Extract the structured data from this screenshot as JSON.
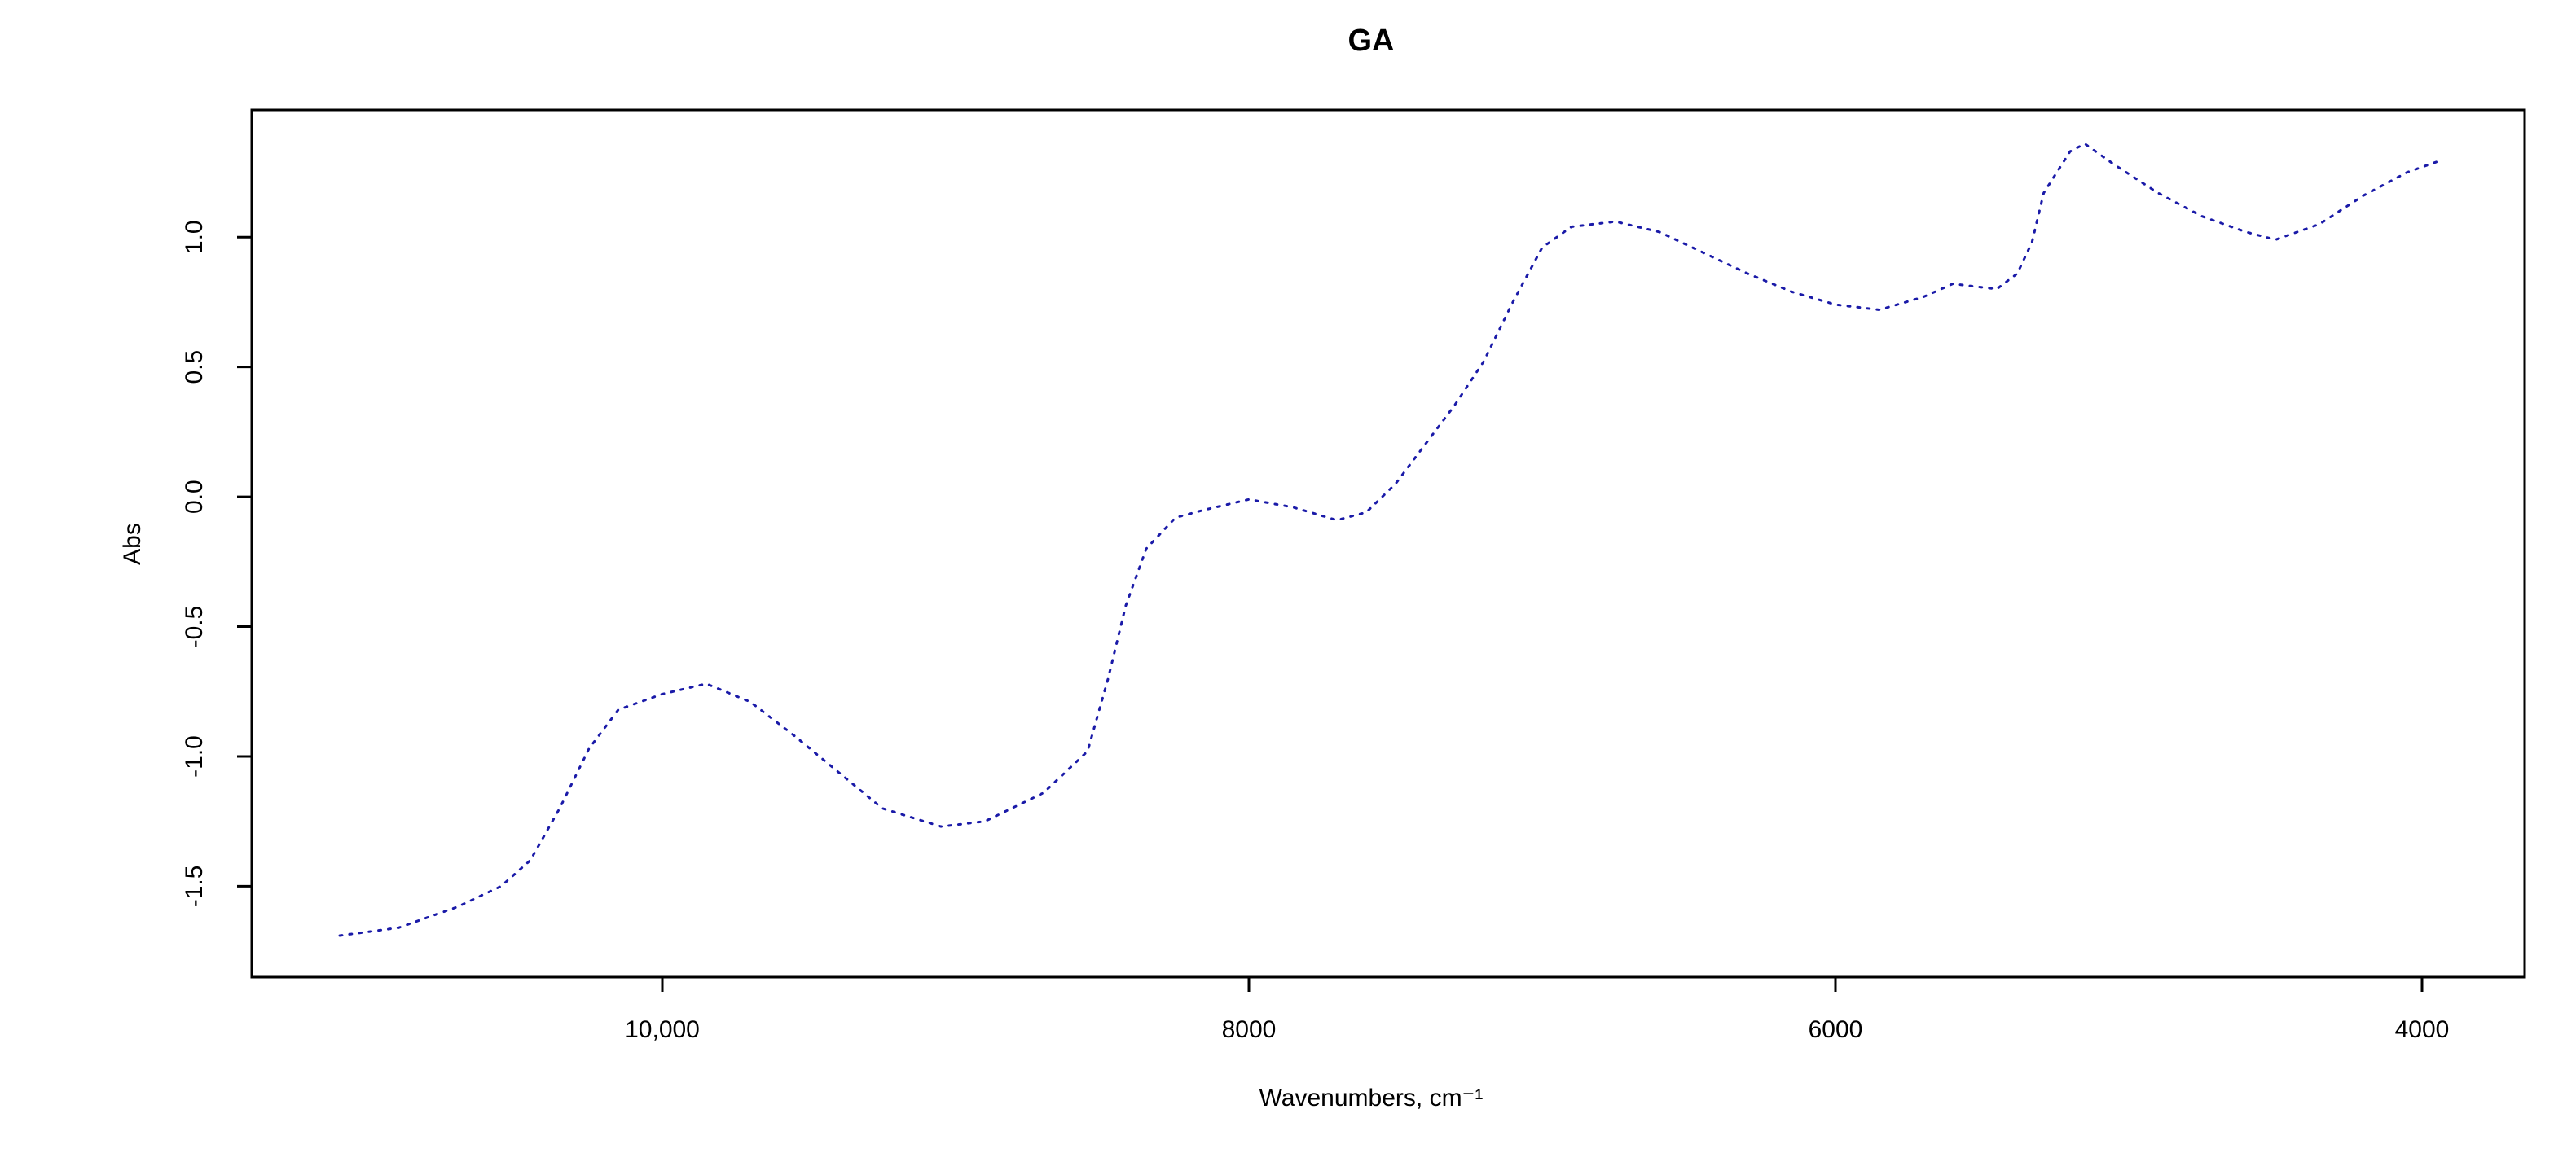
{
  "chart_data": {
    "type": "line",
    "title": "GA",
    "xlabel": "Wavenumbers, cm⁻¹",
    "ylabel": "Abs",
    "xlim": [
      11400,
      3650
    ],
    "ylim": [
      -1.85,
      1.49
    ],
    "x_ticks": [
      {
        "value": 10000,
        "label": "10,000"
      },
      {
        "value": 8000,
        "label": "8000"
      },
      {
        "value": 6000,
        "label": "6000"
      },
      {
        "value": 4000,
        "label": "4000"
      }
    ],
    "y_ticks": [
      {
        "value": -1.5,
        "label": "-1.5"
      },
      {
        "value": -1.0,
        "label": "-1.0"
      },
      {
        "value": -0.5,
        "label": "-0.5"
      },
      {
        "value": 0.0,
        "label": "0.0"
      },
      {
        "value": 0.5,
        "label": "0.5"
      },
      {
        "value": 1.0,
        "label": "1.0"
      }
    ],
    "grid": false,
    "series": [
      {
        "color": "#1a1aa8",
        "points": [
          [
            11100,
            -1.69
          ],
          [
            10900,
            -1.66
          ],
          [
            10700,
            -1.58
          ],
          [
            10550,
            -1.5
          ],
          [
            10450,
            -1.4
          ],
          [
            10350,
            -1.2
          ],
          [
            10250,
            -0.97
          ],
          [
            10150,
            -0.82
          ],
          [
            10000,
            -0.76
          ],
          [
            9850,
            -0.72
          ],
          [
            9700,
            -0.79
          ],
          [
            9550,
            -0.92
          ],
          [
            9400,
            -1.06
          ],
          [
            9250,
            -1.2
          ],
          [
            9050,
            -1.27
          ],
          [
            8900,
            -1.25
          ],
          [
            8700,
            -1.14
          ],
          [
            8550,
            -0.98
          ],
          [
            8480,
            -0.7
          ],
          [
            8420,
            -0.42
          ],
          [
            8350,
            -0.2
          ],
          [
            8250,
            -0.08
          ],
          [
            8150,
            -0.05
          ],
          [
            8000,
            -0.01
          ],
          [
            7850,
            -0.04
          ],
          [
            7700,
            -0.09
          ],
          [
            7600,
            -0.06
          ],
          [
            7500,
            0.05
          ],
          [
            7400,
            0.2
          ],
          [
            7300,
            0.35
          ],
          [
            7200,
            0.52
          ],
          [
            7100,
            0.75
          ],
          [
            7000,
            0.96
          ],
          [
            6900,
            1.04
          ],
          [
            6750,
            1.06
          ],
          [
            6600,
            1.02
          ],
          [
            6450,
            0.94
          ],
          [
            6300,
            0.86
          ],
          [
            6150,
            0.79
          ],
          [
            6000,
            0.74
          ],
          [
            5850,
            0.72
          ],
          [
            5700,
            0.77
          ],
          [
            5600,
            0.82
          ],
          [
            5450,
            0.8
          ],
          [
            5380,
            0.86
          ],
          [
            5330,
            0.98
          ],
          [
            5290,
            1.17
          ],
          [
            5200,
            1.33
          ],
          [
            5150,
            1.36
          ],
          [
            5050,
            1.28
          ],
          [
            4900,
            1.17
          ],
          [
            4750,
            1.08
          ],
          [
            4600,
            1.02
          ],
          [
            4500,
            0.99
          ],
          [
            4350,
            1.05
          ],
          [
            4200,
            1.16
          ],
          [
            4050,
            1.25
          ],
          [
            3950,
            1.29
          ]
        ]
      }
    ]
  }
}
